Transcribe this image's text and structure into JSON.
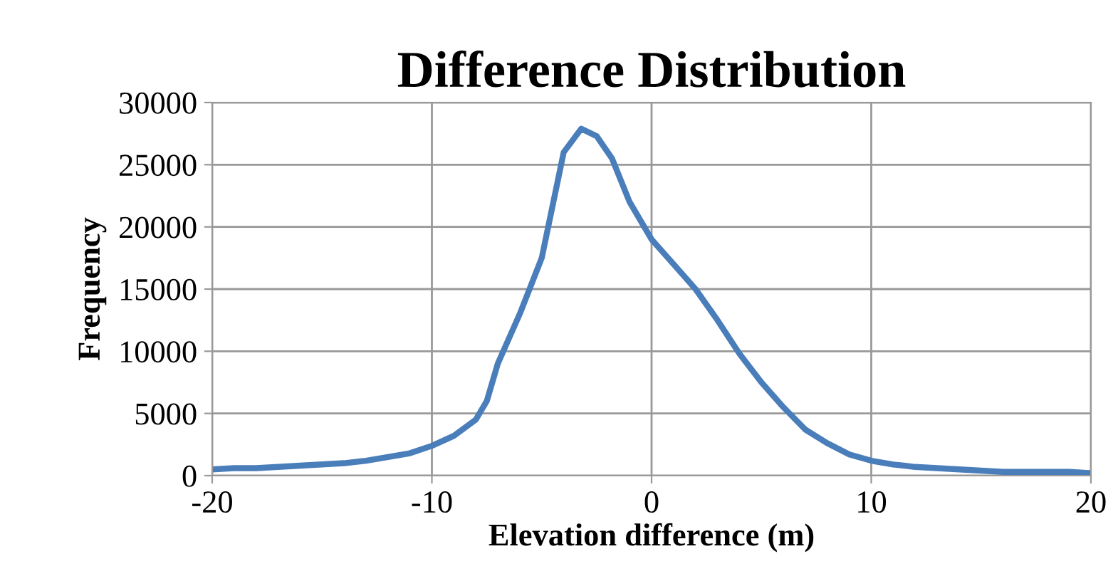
{
  "chart_data": {
    "type": "line",
    "title": "Difference Distribution",
    "xlabel": "Elevation difference (m)",
    "ylabel": "Frequency",
    "x": [
      -20,
      -19,
      -18,
      -17,
      -16,
      -15,
      -14,
      -13,
      -12,
      -11,
      -10,
      -9,
      -8,
      -7.5,
      -7,
      -6,
      -5,
      -4,
      -3.2,
      -2.5,
      -1.8,
      -1,
      0,
      1,
      2,
      3,
      4,
      5,
      6,
      7,
      8,
      9,
      10,
      11,
      12,
      13,
      14,
      15,
      16,
      17,
      18,
      19,
      20
    ],
    "series": [
      {
        "color": "#4a7ebb",
        "values": [
          500,
          600,
          600,
          700,
          800,
          900,
          1000,
          1200,
          1500,
          1800,
          2400,
          3200,
          4500,
          6000,
          9000,
          13000,
          17500,
          26000,
          27900,
          27300,
          25500,
          22000,
          19000,
          17000,
          15000,
          12500,
          9800,
          7500,
          5500,
          3700,
          2600,
          1700,
          1200,
          900,
          700,
          600,
          500,
          400,
          300,
          300,
          300,
          300,
          200
        ]
      }
    ],
    "xlim": [
      -20,
      20
    ],
    "xticks": [
      -20,
      -10,
      0,
      10,
      20
    ],
    "ylim": [
      0,
      30000
    ],
    "yticks": [
      0,
      5000,
      10000,
      15000,
      20000,
      25000,
      30000
    ],
    "grid": true,
    "marker": "none",
    "line_style": "solid"
  }
}
